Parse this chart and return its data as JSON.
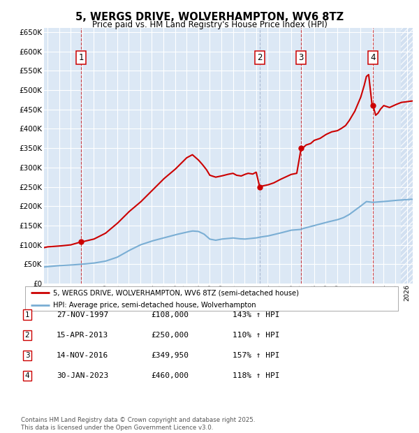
{
  "title": "5, WERGS DRIVE, WOLVERHAMPTON, WV6 8TZ",
  "subtitle": "Price paid vs. HM Land Registry's House Price Index (HPI)",
  "ylim": [
    0,
    660000
  ],
  "yticks": [
    0,
    50000,
    100000,
    150000,
    200000,
    250000,
    300000,
    350000,
    400000,
    450000,
    500000,
    550000,
    600000,
    650000
  ],
  "xlim_start": 1994.7,
  "xlim_end": 2026.5,
  "purchase_coords": [
    [
      1997.9,
      108000,
      "1",
      "red"
    ],
    [
      2013.3,
      250000,
      "2",
      "gray"
    ],
    [
      2016.87,
      349950,
      "3",
      "red"
    ],
    [
      2023.08,
      460000,
      "4",
      "red"
    ]
  ],
  "legend_entries": [
    "5, WERGS DRIVE, WOLVERHAMPTON, WV6 8TZ (semi-detached house)",
    "HPI: Average price, semi-detached house, Wolverhampton"
  ],
  "table_rows": [
    {
      "num": "1",
      "date": "27-NOV-1997",
      "price": "£108,000",
      "hpi": "143% ↑ HPI"
    },
    {
      "num": "2",
      "date": "15-APR-2013",
      "price": "£250,000",
      "hpi": "110% ↑ HPI"
    },
    {
      "num": "3",
      "date": "14-NOV-2016",
      "price": "£349,950",
      "hpi": "157% ↑ HPI"
    },
    {
      "num": "4",
      "date": "30-JAN-2023",
      "price": "£460,000",
      "hpi": "118% ↑ HPI"
    }
  ],
  "footer": "Contains HM Land Registry data © Crown copyright and database right 2025.\nThis data is licensed under the Open Government Licence v3.0.",
  "plot_bg_color": "#dce8f5",
  "red_line_color": "#cc0000",
  "blue_line_color": "#7aaed4"
}
